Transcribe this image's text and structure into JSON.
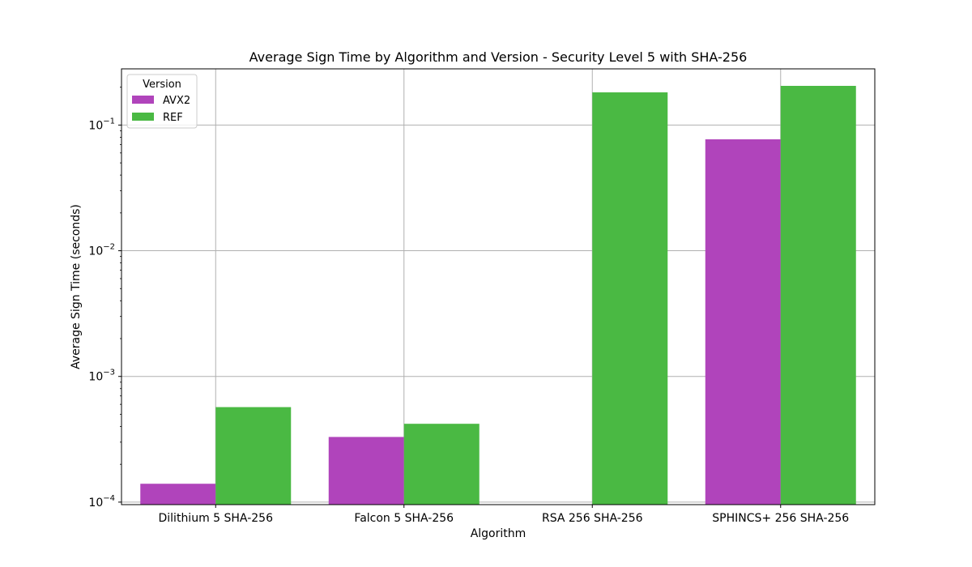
{
  "chart_data": {
    "type": "bar",
    "title": "Average Sign Time by Algorithm and Version - Security Level 5 with SHA-256",
    "xlabel": "Algorithm",
    "ylabel": "Average Sign Time (seconds)",
    "yscale": "log",
    "ylim": [
      9.55e-05,
      0.28
    ],
    "y_ticks": [
      {
        "value": 0.0001,
        "base": "10",
        "exp": "−4"
      },
      {
        "value": 0.001,
        "base": "10",
        "exp": "−3"
      },
      {
        "value": 0.01,
        "base": "10",
        "exp": "−2"
      },
      {
        "value": 0.1,
        "base": "10",
        "exp": "−1"
      }
    ],
    "grid": true,
    "categories": [
      "Dilithium 5 SHA-256",
      "Falcon 5 SHA-256",
      "RSA 256 SHA-256",
      "SPHINCS+ 256 SHA-256"
    ],
    "legend_title": "Version",
    "legend_position": "top-left",
    "series": [
      {
        "name": "AVX2",
        "color": "#b044bb",
        "values": [
          0.00014,
          0.00033,
          null,
          0.077
        ]
      },
      {
        "name": "REF",
        "color": "#4ab943",
        "values": [
          0.00057,
          0.00042,
          0.182,
          0.205
        ]
      }
    ]
  }
}
